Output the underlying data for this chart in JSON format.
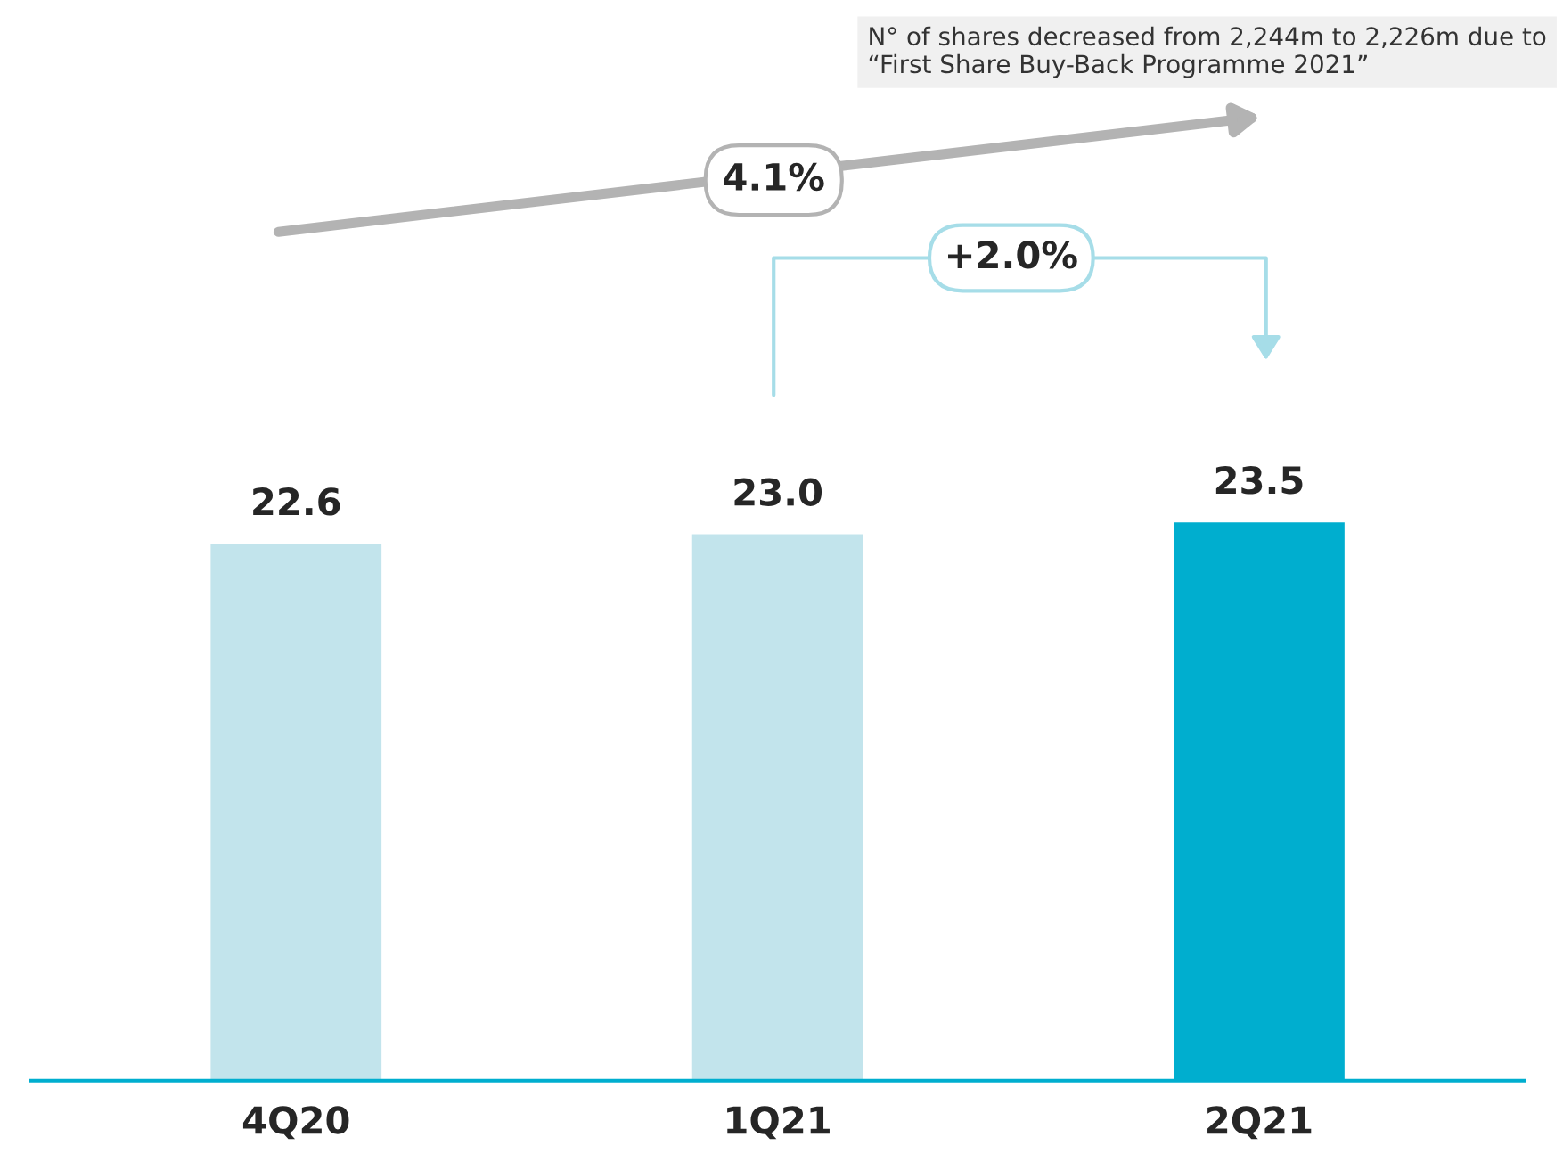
{
  "chart_data": {
    "type": "bar",
    "categories": [
      "4Q20",
      "1Q21",
      "2Q21"
    ],
    "values": [
      22.6,
      23.0,
      23.5
    ],
    "colors": [
      "#c2e4ec",
      "#c2e4ec",
      "#00aecf"
    ],
    "value_labels": [
      "22.6",
      "23.0",
      "23.5"
    ],
    "tick_labels": "x",
    "grid": false,
    "legend": false,
    "annotations": [
      "4.1%",
      "+2.0%",
      "N° of shares decreased from 2,244m to 2,226m due to “First Share Buy-Back Programme 2021”"
    ]
  }
}
